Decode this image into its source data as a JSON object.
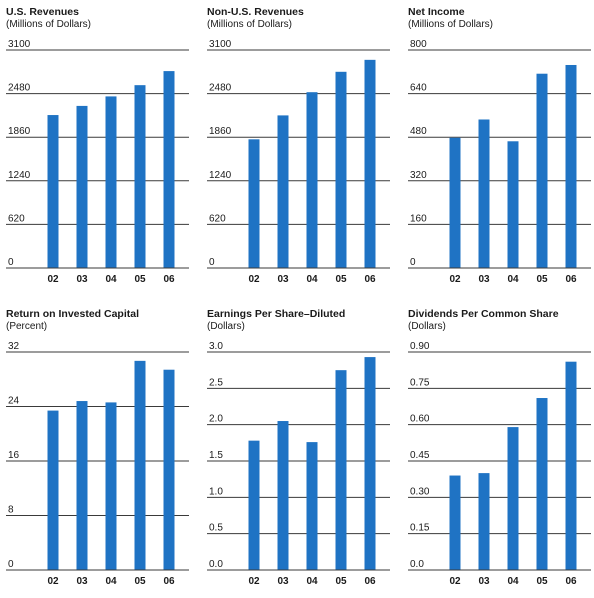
{
  "chart_data": [
    {
      "type": "bar",
      "title": "U.S. Revenues",
      "subtitle": "(Millions of Dollars)",
      "categories": [
        "02",
        "03",
        "04",
        "05",
        "06"
      ],
      "values": [
        2175,
        2305,
        2440,
        2600,
        2800
      ],
      "yticks": [
        "0",
        "620",
        "1240",
        "1860",
        "2480",
        "3100"
      ],
      "ylim": [
        0,
        3100
      ],
      "color": "#1f73c4",
      "grid": true
    },
    {
      "type": "bar",
      "title": "Non-U.S. Revenues",
      "subtitle": "(Millions of Dollars)",
      "categories": [
        "02",
        "03",
        "04",
        "05",
        "06"
      ],
      "values": [
        1830,
        2170,
        2500,
        2790,
        2960
      ],
      "yticks": [
        "0",
        "620",
        "1240",
        "1860",
        "2480",
        "3100"
      ],
      "ylim": [
        0,
        3100
      ],
      "color": "#1f73c4",
      "grid": true
    },
    {
      "type": "bar",
      "title": "Net Income",
      "subtitle": "(Millions of Dollars)",
      "categories": [
        "02",
        "03",
        "04",
        "05",
        "06"
      ],
      "values": [
        478,
        545,
        465,
        713,
        745
      ],
      "yticks": [
        "0",
        "160",
        "320",
        "480",
        "640",
        "800"
      ],
      "ylim": [
        0,
        800
      ],
      "color": "#1f73c4",
      "grid": true
    },
    {
      "type": "bar",
      "title": "Return on Invested Capital",
      "subtitle": "(Percent)",
      "categories": [
        "02",
        "03",
        "04",
        "05",
        "06"
      ],
      "values": [
        23.4,
        24.8,
        24.6,
        30.7,
        29.4
      ],
      "yticks": [
        "0",
        "8",
        "16",
        "24",
        "32"
      ],
      "ylim": [
        0,
        32
      ],
      "color": "#1f73c4",
      "grid": true
    },
    {
      "type": "bar",
      "title": "Earnings Per Share–Diluted",
      "subtitle": "(Dollars)",
      "categories": [
        "02",
        "03",
        "04",
        "05",
        "06"
      ],
      "values": [
        1.78,
        2.05,
        1.76,
        2.75,
        2.93
      ],
      "yticks": [
        "0.0",
        "0.5",
        "1.0",
        "1.5",
        "2.0",
        "2.5",
        "3.0"
      ],
      "ylim": [
        0,
        3.0
      ],
      "color": "#1f73c4",
      "grid": true
    },
    {
      "type": "bar",
      "title": "Dividends Per Common Share",
      "subtitle": "(Dollars)",
      "categories": [
        "02",
        "03",
        "04",
        "05",
        "06"
      ],
      "values": [
        0.39,
        0.4,
        0.59,
        0.71,
        0.86
      ],
      "yticks": [
        "0.0",
        "0.15",
        "0.30",
        "0.45",
        "0.60",
        "0.75",
        "0.90"
      ],
      "ylim": [
        0,
        0.9
      ],
      "color": "#1f73c4",
      "grid": true
    }
  ]
}
